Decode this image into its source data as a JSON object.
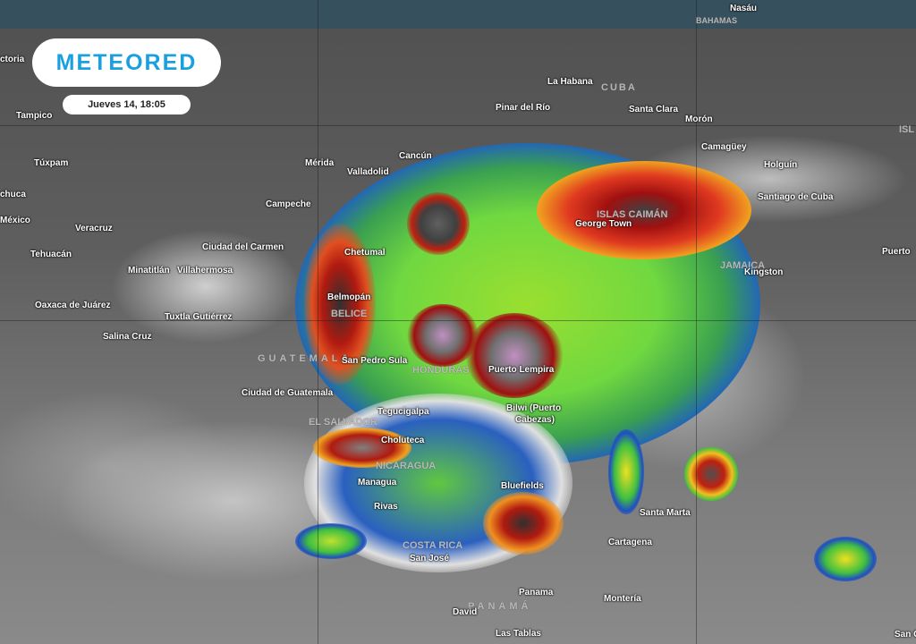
{
  "brand": {
    "logo_text": "METEORED",
    "accent": "#1aa0e0"
  },
  "timestamp": "Jueves 14, 18:05",
  "countries": [
    "BAHAMAS",
    "CUBA",
    "ISLAS CAIMÁN",
    "JAMAICA",
    "BELICE",
    "GUATEMALA",
    "HONDURAS",
    "EL SALVADOR",
    "NICARAGUA",
    "COSTA RICA",
    "PANAMÁ",
    "ISL"
  ],
  "cities": [
    "Nasáu",
    "ctoria",
    "Tampico",
    "Túxpam",
    "chuca",
    "México",
    "Veracruz",
    "Tehuacán",
    "Minatitlán",
    "Villahermosa",
    "Oaxaca de Juárez",
    "Tuxtla Gutiérrez",
    "Salina Cruz",
    "Campeche",
    "Ciudad del Carmen",
    "Mérida",
    "Valladolid",
    "Cancún",
    "Chetumal",
    "Belmopán",
    "San Pedro Sula",
    "Puerto Lempira",
    "Ciudad de Guatemala",
    "Tegucigalpa",
    "Bilwi (Puerto",
    "Cabezas)",
    "Choluteca",
    "Managua",
    "Bluefields",
    "Rivas",
    "San José",
    "David",
    "Panama",
    "Las Tablas",
    "Santa Marta",
    "Cartagena",
    "Montería",
    "San C",
    "La Habana",
    "Pinar del Río",
    "Santa Clara",
    "Morón",
    "Camagüey",
    "Holguín",
    "Santiago de Cuba",
    "George Town",
    "Kingston",
    "Puerto"
  ],
  "colors": {
    "cold_tops": "#d03020",
    "very_cold": "#303030",
    "moderate": "#f0e020",
    "convection": "#40d040",
    "light": "#2050c0"
  }
}
